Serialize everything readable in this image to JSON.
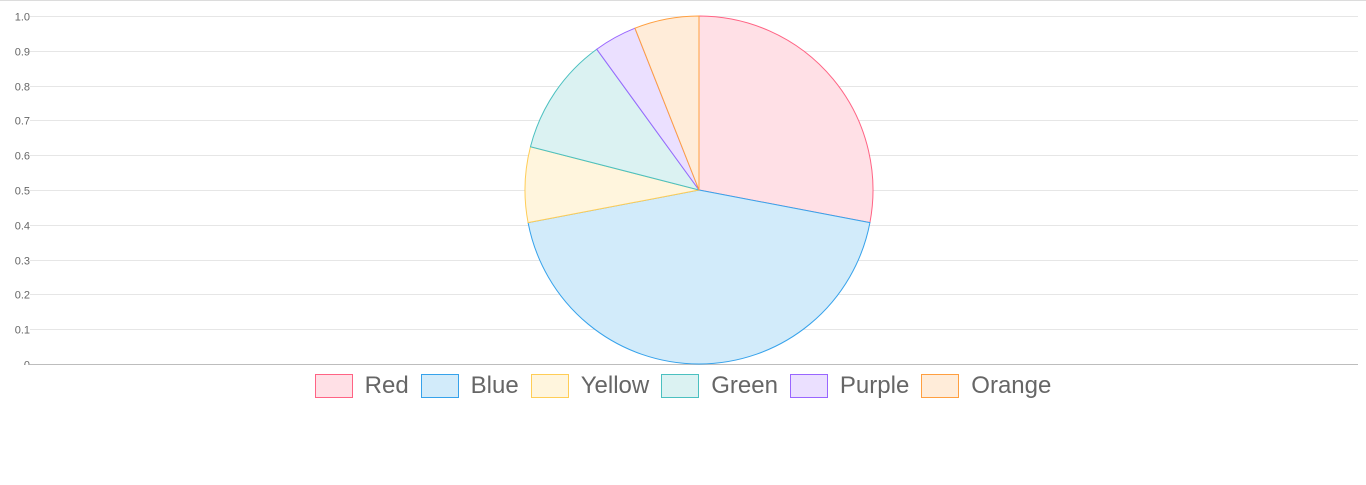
{
  "chart_data": {
    "type": "pie",
    "categories": [
      "Red",
      "Blue",
      "Yellow",
      "Green",
      "Purple",
      "Orange"
    ],
    "values": [
      28,
      44,
      7,
      11,
      4,
      6
    ],
    "series": [
      {
        "values": [
          28,
          44,
          7,
          11,
          4,
          6
        ]
      }
    ],
    "title": "",
    "xlabel": "",
    "ylabel": "",
    "ylim": [
      0,
      1.0
    ],
    "y_ticks": [
      "0",
      "0.1",
      "0.2",
      "0.3",
      "0.4",
      "0.5",
      "0.6",
      "0.7",
      "0.8",
      "0.9",
      "1.0"
    ],
    "grid": true,
    "legend_position": "bottom",
    "colors": {
      "Red": {
        "fill": "#ffe0e6",
        "stroke": "#ff6384"
      },
      "Blue": {
        "fill": "#d2ebfa",
        "stroke": "#36a2eb"
      },
      "Yellow": {
        "fill": "#fff5dd",
        "stroke": "#ffcd56"
      },
      "Green": {
        "fill": "#dbf2f2",
        "stroke": "#4bc0c0"
      },
      "Purple": {
        "fill": "#ebe0ff",
        "stroke": "#9966ff"
      },
      "Orange": {
        "fill": "#ffecd9",
        "stroke": "#ff9f40"
      }
    }
  }
}
